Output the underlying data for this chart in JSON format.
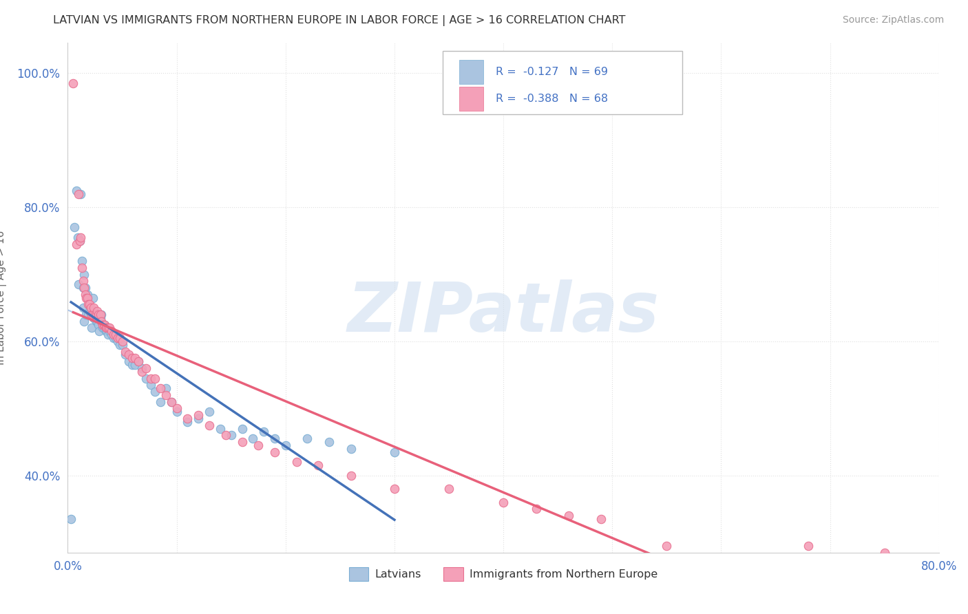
{
  "title": "LATVIAN VS IMMIGRANTS FROM NORTHERN EUROPE IN LABOR FORCE | AGE > 16 CORRELATION CHART",
  "source_text": "Source: ZipAtlas.com",
  "ylabel": "In Labor Force | Age > 16",
  "xlim": [
    0.0,
    0.8
  ],
  "ylim": [
    0.285,
    1.045
  ],
  "x_ticks": [
    0.0,
    0.1,
    0.2,
    0.3,
    0.4,
    0.5,
    0.6,
    0.7,
    0.8
  ],
  "x_tick_labels": [
    "0.0%",
    "",
    "",
    "",
    "",
    "",
    "",
    "",
    "80.0%"
  ],
  "y_ticks": [
    0.4,
    0.6,
    0.8,
    1.0
  ],
  "y_tick_labels": [
    "40.0%",
    "60.0%",
    "80.0%",
    "100.0%"
  ],
  "latvian_color": "#aac4e0",
  "latvian_edge_color": "#7bafd4",
  "immigrant_color": "#f4a0b8",
  "immigrant_edge_color": "#e87090",
  "latvian_line_color": "#4472b8",
  "immigrant_line_color": "#e8607a",
  "immigrant_dash_color": "#b0c8e8",
  "R_latvian": -0.127,
  "N_latvian": 69,
  "R_immigrant": -0.388,
  "N_immigrant": 68,
  "watermark": "ZIPatlas",
  "background_color": "#ffffff",
  "grid_color": "#e0e0e0",
  "latvian_x": [
    0.003,
    0.006,
    0.008,
    0.009,
    0.01,
    0.011,
    0.012,
    0.013,
    0.014,
    0.014,
    0.015,
    0.015,
    0.016,
    0.017,
    0.018,
    0.019,
    0.02,
    0.021,
    0.022,
    0.022,
    0.023,
    0.024,
    0.025,
    0.026,
    0.027,
    0.028,
    0.029,
    0.03,
    0.031,
    0.032,
    0.033,
    0.034,
    0.035,
    0.036,
    0.037,
    0.038,
    0.04,
    0.042,
    0.044,
    0.046,
    0.048,
    0.05,
    0.053,
    0.056,
    0.059,
    0.062,
    0.065,
    0.068,
    0.072,
    0.076,
    0.08,
    0.085,
    0.09,
    0.095,
    0.1,
    0.11,
    0.12,
    0.13,
    0.14,
    0.15,
    0.16,
    0.17,
    0.18,
    0.19,
    0.2,
    0.22,
    0.24,
    0.26,
    0.3
  ],
  "latvian_y": [
    0.335,
    0.77,
    0.825,
    0.755,
    0.685,
    0.75,
    0.82,
    0.72,
    0.68,
    0.65,
    0.7,
    0.63,
    0.68,
    0.64,
    0.67,
    0.64,
    0.645,
    0.645,
    0.64,
    0.62,
    0.665,
    0.635,
    0.64,
    0.63,
    0.63,
    0.625,
    0.615,
    0.635,
    0.64,
    0.62,
    0.62,
    0.625,
    0.615,
    0.615,
    0.61,
    0.615,
    0.61,
    0.605,
    0.605,
    0.6,
    0.595,
    0.595,
    0.58,
    0.57,
    0.565,
    0.565,
    0.57,
    0.56,
    0.545,
    0.535,
    0.525,
    0.51,
    0.53,
    0.51,
    0.495,
    0.48,
    0.485,
    0.495,
    0.47,
    0.46,
    0.47,
    0.455,
    0.465,
    0.455,
    0.445,
    0.455,
    0.45,
    0.44,
    0.435
  ],
  "immigrant_x": [
    0.005,
    0.008,
    0.01,
    0.011,
    0.012,
    0.013,
    0.014,
    0.015,
    0.016,
    0.017,
    0.018,
    0.019,
    0.02,
    0.021,
    0.022,
    0.023,
    0.024,
    0.025,
    0.026,
    0.027,
    0.028,
    0.03,
    0.031,
    0.032,
    0.033,
    0.034,
    0.035,
    0.036,
    0.037,
    0.038,
    0.04,
    0.042,
    0.044,
    0.046,
    0.048,
    0.05,
    0.053,
    0.056,
    0.059,
    0.062,
    0.065,
    0.068,
    0.072,
    0.076,
    0.08,
    0.085,
    0.09,
    0.095,
    0.1,
    0.11,
    0.12,
    0.13,
    0.145,
    0.16,
    0.175,
    0.19,
    0.21,
    0.23,
    0.26,
    0.3,
    0.35,
    0.4,
    0.43,
    0.46,
    0.49,
    0.55,
    0.68,
    0.75
  ],
  "immigrant_y": [
    0.985,
    0.745,
    0.82,
    0.75,
    0.755,
    0.71,
    0.69,
    0.68,
    0.67,
    0.665,
    0.665,
    0.655,
    0.655,
    0.65,
    0.64,
    0.64,
    0.65,
    0.64,
    0.64,
    0.645,
    0.64,
    0.64,
    0.63,
    0.625,
    0.625,
    0.625,
    0.62,
    0.62,
    0.62,
    0.62,
    0.615,
    0.61,
    0.61,
    0.605,
    0.605,
    0.6,
    0.585,
    0.58,
    0.575,
    0.575,
    0.57,
    0.555,
    0.56,
    0.545,
    0.545,
    0.53,
    0.52,
    0.51,
    0.5,
    0.485,
    0.49,
    0.475,
    0.46,
    0.45,
    0.445,
    0.435,
    0.42,
    0.415,
    0.4,
    0.38,
    0.38,
    0.36,
    0.35,
    0.34,
    0.335,
    0.295,
    0.295,
    0.285
  ]
}
